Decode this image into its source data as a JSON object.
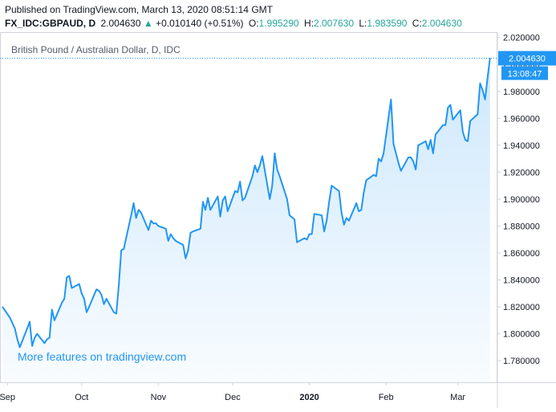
{
  "header": {
    "published": "Published on TradingView.com, March 13, 2020 08:51:14 GMT",
    "symbol": "FX_IDC:GBPAUD, D",
    "last": "2.004630",
    "change_arrow": "▲",
    "change": "+0.010140 (+0.51%)",
    "open_label": "O:",
    "open": "1.995290",
    "high_label": "H:",
    "high": "2.007630",
    "low_label": "L:",
    "low": "1.983590",
    "close_label": "C:",
    "close": "2.004630"
  },
  "colors": {
    "line": "#2196f3",
    "positive": "#26a69a",
    "price_tag": "#2196f3",
    "watermark": "#2196f3",
    "axis_text": "#131722",
    "grid_border": "#d1d4dc"
  },
  "chart_data": {
    "type": "area",
    "title": "British Pound / Australian Dollar, D, IDC",
    "watermark": "More features on tradingview.com",
    "last_price_label": "2.004630",
    "countdown_label": "13:08:47",
    "ylim": [
      1.764,
      2.024
    ],
    "y_ticks": [
      1.78,
      1.8,
      1.82,
      1.84,
      1.86,
      1.88,
      1.9,
      1.92,
      1.94,
      1.96,
      1.98,
      2.0,
      2.02
    ],
    "y_tick_labels": [
      "1.780000",
      "1.800000",
      "1.820000",
      "1.840000",
      "1.860000",
      "1.880000",
      "1.900000",
      "1.920000",
      "1.940000",
      "1.960000",
      "1.980000",
      "2.000000",
      "2.020000"
    ],
    "xlim": [
      "2019-08-29",
      "2020-03-17"
    ],
    "x_ticks": [
      {
        "date": "2019-09-01",
        "label": "Sep",
        "bold": false
      },
      {
        "date": "2019-10-01",
        "label": "Oct",
        "bold": false
      },
      {
        "date": "2019-11-01",
        "label": "Nov",
        "bold": false
      },
      {
        "date": "2019-12-01",
        "label": "Dec",
        "bold": false
      },
      {
        "date": "2020-01-01",
        "label": "2020",
        "bold": true
      },
      {
        "date": "2020-02-01",
        "label": "Feb",
        "bold": false
      },
      {
        "date": "2020-03-01",
        "label": "Mar",
        "bold": false
      }
    ],
    "series": [
      {
        "points": [
          [
            "2019-08-30",
            1.82
          ],
          [
            "2019-09-02",
            1.812
          ],
          [
            "2019-09-03",
            1.808
          ],
          [
            "2019-09-04",
            1.804
          ],
          [
            "2019-09-05",
            1.796
          ],
          [
            "2019-09-06",
            1.79
          ],
          [
            "2019-09-09",
            1.804
          ],
          [
            "2019-09-10",
            1.809
          ],
          [
            "2019-09-11",
            1.791
          ],
          [
            "2019-09-12",
            1.797
          ],
          [
            "2019-09-13",
            1.8
          ],
          [
            "2019-09-16",
            1.793
          ],
          [
            "2019-09-17",
            1.796
          ],
          [
            "2019-09-18",
            1.797
          ],
          [
            "2019-09-19",
            1.818
          ],
          [
            "2019-09-20",
            1.81
          ],
          [
            "2019-09-23",
            1.823
          ],
          [
            "2019-09-24",
            1.826
          ],
          [
            "2019-09-25",
            1.842
          ],
          [
            "2019-09-26",
            1.843
          ],
          [
            "2019-09-27",
            1.834
          ],
          [
            "2019-09-30",
            1.837
          ],
          [
            "2019-10-01",
            1.83
          ],
          [
            "2019-10-02",
            1.826
          ],
          [
            "2019-10-03",
            1.816
          ],
          [
            "2019-10-04",
            1.82
          ],
          [
            "2019-10-07",
            1.833
          ],
          [
            "2019-10-08",
            1.832
          ],
          [
            "2019-10-09",
            1.829
          ],
          [
            "2019-10-10",
            1.822
          ],
          [
            "2019-10-11",
            1.826
          ],
          [
            "2019-10-14",
            1.816
          ],
          [
            "2019-10-15",
            1.815
          ],
          [
            "2019-10-16",
            1.836
          ],
          [
            "2019-10-17",
            1.862
          ],
          [
            "2019-10-18",
            1.863
          ],
          [
            "2019-10-21",
            1.888
          ],
          [
            "2019-10-22",
            1.897
          ],
          [
            "2019-10-23",
            1.886
          ],
          [
            "2019-10-24",
            1.892
          ],
          [
            "2019-10-25",
            1.89
          ],
          [
            "2019-10-28",
            1.877
          ],
          [
            "2019-10-29",
            1.884
          ],
          [
            "2019-10-30",
            1.882
          ],
          [
            "2019-10-31",
            1.882
          ],
          [
            "2019-11-01",
            1.88
          ],
          [
            "2019-11-04",
            1.878
          ],
          [
            "2019-11-05",
            1.869
          ],
          [
            "2019-11-06",
            1.874
          ],
          [
            "2019-11-07",
            1.871
          ],
          [
            "2019-11-08",
            1.869
          ],
          [
            "2019-11-11",
            1.866
          ],
          [
            "2019-11-12",
            1.856
          ],
          [
            "2019-11-13",
            1.862
          ],
          [
            "2019-11-14",
            1.875
          ],
          [
            "2019-11-15",
            1.876
          ],
          [
            "2019-11-18",
            1.878
          ],
          [
            "2019-11-19",
            1.898
          ],
          [
            "2019-11-20",
            1.892
          ],
          [
            "2019-11-21",
            1.901
          ],
          [
            "2019-11-22",
            1.892
          ],
          [
            "2019-11-25",
            1.902
          ],
          [
            "2019-11-26",
            1.887
          ],
          [
            "2019-11-27",
            1.899
          ],
          [
            "2019-11-28",
            1.902
          ],
          [
            "2019-11-29",
            1.891
          ],
          [
            "2019-12-02",
            1.906
          ],
          [
            "2019-12-03",
            1.905
          ],
          [
            "2019-12-04",
            1.913
          ],
          [
            "2019-12-05",
            1.899
          ],
          [
            "2019-12-06",
            1.901
          ],
          [
            "2019-12-09",
            1.917
          ],
          [
            "2019-12-10",
            1.925
          ],
          [
            "2019-12-11",
            1.92
          ],
          [
            "2019-12-12",
            1.925
          ],
          [
            "2019-12-13",
            1.932
          ],
          [
            "2019-12-16",
            1.9
          ],
          [
            "2019-12-17",
            1.91
          ],
          [
            "2019-12-18",
            1.934
          ],
          [
            "2019-12-19",
            1.922
          ],
          [
            "2019-12-20",
            1.917
          ],
          [
            "2019-12-23",
            1.9
          ],
          [
            "2019-12-24",
            1.888
          ],
          [
            "2019-12-26",
            1.885
          ],
          [
            "2019-12-27",
            1.868
          ],
          [
            "2019-12-30",
            1.871
          ],
          [
            "2019-12-31",
            1.87
          ],
          [
            "2020-01-01",
            1.874
          ],
          [
            "2020-01-02",
            1.874
          ],
          [
            "2020-01-03",
            1.889
          ],
          [
            "2020-01-06",
            1.888
          ],
          [
            "2020-01-07",
            1.876
          ],
          [
            "2020-01-08",
            1.884
          ],
          [
            "2020-01-09",
            1.898
          ],
          [
            "2020-01-10",
            1.91
          ],
          [
            "2020-01-13",
            1.906
          ],
          [
            "2020-01-14",
            1.89
          ],
          [
            "2020-01-15",
            1.881
          ],
          [
            "2020-01-16",
            1.886
          ],
          [
            "2020-01-17",
            1.884
          ],
          [
            "2020-01-20",
            1.897
          ],
          [
            "2020-01-21",
            1.891
          ],
          [
            "2020-01-22",
            1.892
          ],
          [
            "2020-01-23",
            1.905
          ],
          [
            "2020-01-24",
            1.914
          ],
          [
            "2020-01-27",
            1.918
          ],
          [
            "2020-01-28",
            1.917
          ],
          [
            "2020-01-29",
            1.93
          ],
          [
            "2020-01-30",
            1.928
          ],
          [
            "2020-01-31",
            1.934
          ],
          [
            "2020-02-03",
            1.974
          ],
          [
            "2020-02-04",
            1.941
          ],
          [
            "2020-02-05",
            1.934
          ],
          [
            "2020-02-06",
            1.927
          ],
          [
            "2020-02-07",
            1.921
          ],
          [
            "2020-02-10",
            1.931
          ],
          [
            "2020-02-11",
            1.931
          ],
          [
            "2020-02-12",
            1.928
          ],
          [
            "2020-02-13",
            1.922
          ],
          [
            "2020-02-14",
            1.94
          ],
          [
            "2020-02-17",
            1.943
          ],
          [
            "2020-02-18",
            1.937
          ],
          [
            "2020-02-19",
            1.944
          ],
          [
            "2020-02-20",
            1.934
          ],
          [
            "2020-02-21",
            1.948
          ],
          [
            "2020-02-24",
            1.955
          ],
          [
            "2020-02-25",
            1.955
          ],
          [
            "2020-02-26",
            1.968
          ],
          [
            "2020-02-27",
            1.97
          ],
          [
            "2020-02-28",
            1.959
          ],
          [
            "2020-03-02",
            1.966
          ],
          [
            "2020-03-03",
            1.95
          ],
          [
            "2020-03-04",
            1.944
          ],
          [
            "2020-03-05",
            1.943
          ],
          [
            "2020-03-06",
            1.958
          ],
          [
            "2020-03-09",
            1.963
          ],
          [
            "2020-03-10",
            1.986
          ],
          [
            "2020-03-11",
            1.981
          ],
          [
            "2020-03-12",
            1.974
          ],
          [
            "2020-03-13",
            1.99
          ],
          [
            "2020-03-14",
            2.0046
          ]
        ]
      }
    ]
  }
}
